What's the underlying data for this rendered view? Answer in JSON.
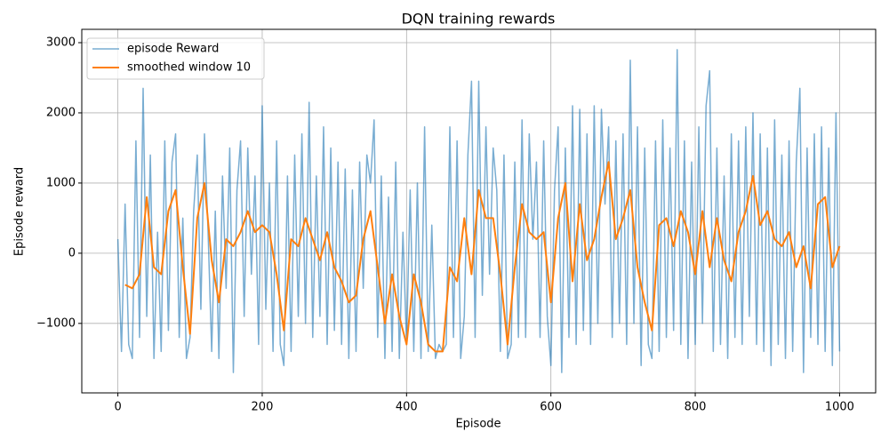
{
  "chart_data": {
    "type": "line",
    "title": "DQN training rewards",
    "x_label": "Episode",
    "y_label": "Episode reward",
    "xlim": [
      -50,
      1050
    ],
    "ylim": [
      -1990,
      3190
    ],
    "xticks": [
      0,
      200,
      400,
      600,
      800,
      1000
    ],
    "yticks": [
      {
        "value": -1000,
        "label": "−1000"
      },
      0,
      1000,
      2000,
      3000
    ],
    "grid": true,
    "legend": "upper left",
    "series": [
      {
        "name": "episode Reward",
        "color": "#1f77b4",
        "opacity": 0.6,
        "width": 1.5,
        "x": [
          0,
          5,
          10,
          15,
          20,
          25,
          30,
          35,
          40,
          45,
          50,
          55,
          60,
          65,
          70,
          75,
          80,
          85,
          90,
          95,
          100,
          105,
          110,
          115,
          120,
          125,
          130,
          135,
          140,
          145,
          150,
          155,
          160,
          165,
          170,
          175,
          180,
          185,
          190,
          195,
          200,
          205,
          210,
          215,
          220,
          225,
          230,
          235,
          240,
          245,
          250,
          255,
          260,
          265,
          270,
          275,
          280,
          285,
          290,
          295,
          300,
          305,
          310,
          315,
          320,
          325,
          330,
          335,
          340,
          345,
          350,
          355,
          360,
          365,
          370,
          375,
          380,
          385,
          390,
          395,
          400,
          405,
          410,
          415,
          420,
          425,
          430,
          435,
          440,
          445,
          450,
          455,
          460,
          465,
          470,
          475,
          480,
          485,
          490,
          495,
          500,
          505,
          510,
          515,
          520,
          525,
          530,
          535,
          540,
          545,
          550,
          555,
          560,
          565,
          570,
          575,
          580,
          585,
          590,
          595,
          600,
          605,
          610,
          615,
          620,
          625,
          630,
          635,
          640,
          645,
          650,
          655,
          660,
          665,
          670,
          675,
          680,
          685,
          690,
          695,
          700,
          705,
          710,
          715,
          720,
          725,
          730,
          735,
          740,
          745,
          750,
          755,
          760,
          765,
          770,
          775,
          780,
          785,
          790,
          795,
          800,
          805,
          810,
          815,
          820,
          825,
          830,
          835,
          840,
          845,
          850,
          855,
          860,
          865,
          870,
          875,
          880,
          885,
          890,
          895,
          900,
          905,
          910,
          915,
          920,
          925,
          930,
          935,
          940,
          945,
          950,
          955,
          960,
          965,
          970,
          975,
          980,
          985,
          990,
          995,
          1000
        ],
        "values": [
          200,
          -1400,
          700,
          -1300,
          -1500,
          1600,
          -1200,
          2350,
          -900,
          1400,
          -1500,
          300,
          -1400,
          1600,
          -1100,
          1300,
          1700,
          -1200,
          500,
          -1500,
          -1200,
          600,
          1400,
          -800,
          1700,
          300,
          -1400,
          600,
          -1500,
          1100,
          -500,
          1500,
          -1700,
          900,
          1600,
          -900,
          1500,
          -300,
          1100,
          -1300,
          2100,
          -800,
          1000,
          -1400,
          1600,
          -1300,
          -1600,
          1100,
          -1400,
          1400,
          -900,
          1700,
          -1000,
          2150,
          -1200,
          1100,
          -900,
          1800,
          -1300,
          1500,
          -1100,
          1300,
          -1300,
          1200,
          -1500,
          900,
          -1400,
          1300,
          -500,
          1400,
          1000,
          1900,
          -1200,
          1100,
          -1500,
          800,
          -1400,
          1300,
          -1500,
          300,
          -1300,
          900,
          -1400,
          1000,
          -1500,
          1800,
          -1400,
          400,
          -1500,
          -1300,
          -1400,
          -1300,
          1800,
          -1200,
          1600,
          -1500,
          -900,
          1400,
          2450,
          -1200,
          2450,
          -600,
          1800,
          -300,
          1500,
          900,
          -1400,
          1400,
          -1500,
          -1300,
          1300,
          -1200,
          1900,
          -1200,
          1700,
          200,
          1300,
          -1200,
          1600,
          -900,
          -1600,
          900,
          1800,
          -1700,
          1500,
          -1200,
          2100,
          -1300,
          2050,
          -1100,
          1700,
          -1300,
          2100,
          -1000,
          2050,
          700,
          1800,
          -1200,
          1600,
          -1000,
          1700,
          -1300,
          2750,
          -1000,
          1800,
          -1600,
          1500,
          -1300,
          -1500,
          1600,
          -1400,
          1900,
          -1200,
          1500,
          -1100,
          2900,
          -1300,
          1600,
          -1500,
          1300,
          -1300,
          1800,
          -1000,
          2100,
          2600,
          -1400,
          1500,
          -1300,
          1100,
          -1500,
          1700,
          -1200,
          1600,
          -1300,
          1800,
          -900,
          2000,
          -1300,
          1700,
          -1400,
          1500,
          -1600,
          1900,
          -1300,
          1400,
          -1500,
          1600,
          -1400,
          1300,
          2350,
          -1700,
          1500,
          -1200,
          1700,
          -1300,
          1800,
          -1400,
          1500,
          -1600,
          2000,
          -1400
        ]
      },
      {
        "name": "smoothed window 10",
        "color": "#ff7f0e",
        "opacity": 1,
        "width": 2,
        "x": [
          10,
          20,
          30,
          40,
          50,
          60,
          70,
          80,
          90,
          100,
          110,
          120,
          130,
          140,
          150,
          160,
          170,
          180,
          190,
          200,
          210,
          220,
          230,
          240,
          250,
          260,
          270,
          280,
          290,
          300,
          310,
          320,
          330,
          340,
          350,
          360,
          370,
          380,
          390,
          400,
          410,
          420,
          430,
          440,
          450,
          460,
          470,
          480,
          490,
          500,
          510,
          520,
          530,
          540,
          550,
          560,
          570,
          580,
          590,
          600,
          610,
          620,
          630,
          640,
          650,
          660,
          670,
          680,
          690,
          700,
          710,
          720,
          730,
          740,
          750,
          760,
          770,
          780,
          790,
          800,
          810,
          820,
          830,
          840,
          850,
          860,
          870,
          880,
          890,
          900,
          910,
          920,
          930,
          940,
          950,
          960,
          970,
          980,
          990,
          1000
        ],
        "values": [
          -450,
          -500,
          -300,
          800,
          -200,
          -300,
          600,
          900,
          -200,
          -1150,
          500,
          1000,
          -100,
          -700,
          200,
          100,
          300,
          600,
          300,
          400,
          300,
          -300,
          -1100,
          200,
          100,
          500,
          200,
          -100,
          300,
          -200,
          -400,
          -700,
          -600,
          200,
          600,
          -200,
          -1000,
          -300,
          -900,
          -1300,
          -300,
          -700,
          -1300,
          -1400,
          -1400,
          -200,
          -400,
          500,
          -300,
          900,
          500,
          500,
          -300,
          -1300,
          -200,
          700,
          300,
          200,
          300,
          -700,
          500,
          1000,
          -400,
          700,
          -100,
          200,
          800,
          1300,
          200,
          500,
          900,
          -200,
          -700,
          -1100,
          400,
          500,
          100,
          600,
          300,
          -300,
          600,
          -200,
          500,
          -100,
          -400,
          300,
          600,
          1100,
          400,
          600,
          200,
          100,
          300,
          -200,
          100,
          -500,
          700,
          800,
          -200,
          100
        ]
      }
    ]
  }
}
